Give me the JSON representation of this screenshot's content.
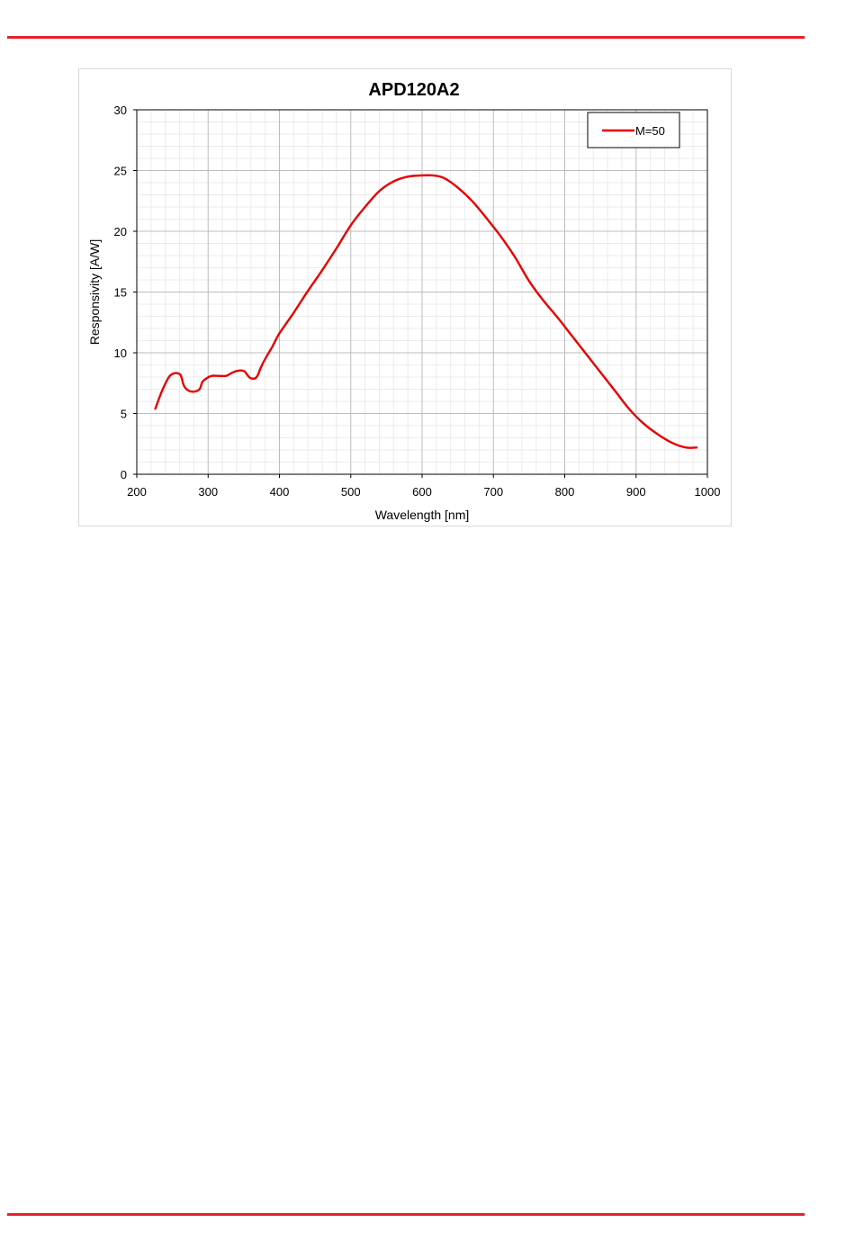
{
  "chart_data": {
    "type": "line",
    "title": "APD120A2",
    "xlabel": "Wavelength  [nm]",
    "ylabel": "Responsivity  [A/W]",
    "xlim": [
      200,
      1000
    ],
    "ylim": [
      0,
      30
    ],
    "x_ticks": [
      200,
      300,
      400,
      500,
      600,
      700,
      800,
      900,
      1000
    ],
    "y_ticks": [
      0,
      5,
      10,
      15,
      20,
      25,
      30
    ],
    "grid": true,
    "legend_position": "top-right",
    "series": [
      {
        "name": "M=50",
        "color": "#e60000",
        "x": [
          226,
          235,
          245,
          252,
          258,
          262,
          266,
          272,
          280,
          288,
          292,
          298,
          305,
          315,
          325,
          332,
          340,
          350,
          356,
          360,
          366,
          370,
          374,
          380,
          390,
          400,
          420,
          440,
          460,
          480,
          500,
          520,
          540,
          560,
          580,
          600,
          615,
          630,
          650,
          670,
          690,
          710,
          730,
          750,
          770,
          790,
          810,
          830,
          850,
          870,
          890,
          910,
          930,
          950,
          970,
          985
        ],
        "y": [
          5.4,
          6.8,
          8.0,
          8.3,
          8.3,
          8.1,
          7.3,
          6.9,
          6.8,
          7.0,
          7.6,
          7.9,
          8.1,
          8.1,
          8.1,
          8.3,
          8.5,
          8.5,
          8.1,
          7.9,
          7.9,
          8.2,
          8.8,
          9.5,
          10.5,
          11.6,
          13.3,
          15.1,
          16.8,
          18.6,
          20.5,
          22.0,
          23.3,
          24.1,
          24.5,
          24.6,
          24.6,
          24.4,
          23.6,
          22.5,
          21.1,
          19.6,
          17.9,
          15.9,
          14.3,
          12.9,
          11.4,
          9.9,
          8.4,
          6.9,
          5.4,
          4.2,
          3.3,
          2.6,
          2.2,
          2.2
        ]
      }
    ]
  }
}
